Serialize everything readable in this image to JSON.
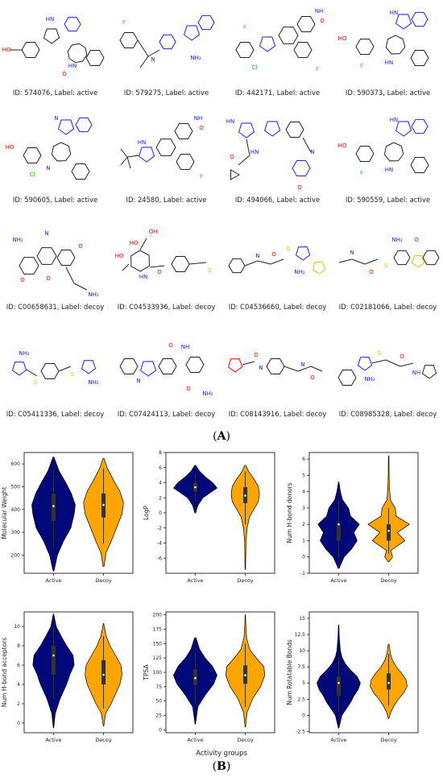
{
  "figure": {
    "panel_a_label": "A",
    "panel_b_label": "B",
    "x_group_label": "Activity groups"
  },
  "molecules": [
    {
      "id": "574076",
      "label": "active",
      "caption": "ID: 574076, Label: active"
    },
    {
      "id": "579275",
      "label": "active",
      "caption": "ID: 579275, Label: active"
    },
    {
      "id": "442171",
      "label": "active",
      "caption": "ID: 442171, Label: active"
    },
    {
      "id": "590373",
      "label": "active",
      "caption": "ID: 590373, Label: active"
    },
    {
      "id": "590605",
      "label": "active",
      "caption": "ID: 590605, Label: active"
    },
    {
      "id": "24580",
      "label": "active",
      "caption": "ID: 24580, Label: active"
    },
    {
      "id": "494066",
      "label": "active",
      "caption": "ID: 494066, Label: active"
    },
    {
      "id": "590559",
      "label": "active",
      "caption": "ID: 590559, Label: active"
    },
    {
      "id": "C00658631",
      "label": "decoy",
      "caption": "ID: C00658631, Label: decoy"
    },
    {
      "id": "C04533936",
      "label": "decoy",
      "caption": "ID: C04533936, Label: decoy"
    },
    {
      "id": "C04536660",
      "label": "decoy",
      "caption": "ID: C04536660, Label: decoy"
    },
    {
      "id": "C02181066",
      "label": "decoy",
      "caption": "ID: C02181066, Label: decoy"
    },
    {
      "id": "C05411336",
      "label": "decoy",
      "caption": "ID: C05411336, Label: decoy"
    },
    {
      "id": "C07424113",
      "label": "decoy",
      "caption": "ID: C07424113, Label: decoy"
    },
    {
      "id": "C08143916",
      "label": "decoy",
      "caption": "ID: C08143916, Label: decoy"
    },
    {
      "id": "C08985328",
      "label": "decoy",
      "caption": "ID: C08985328, Label: decoy"
    }
  ],
  "colors": {
    "active": "#00087a",
    "decoy": "#ffa500",
    "bond": "#222222",
    "nitrogen": "#2020ff",
    "oxygen": "#ff0000",
    "halogen_f": "#33cc33",
    "halogen_cl": "#22aa22",
    "sulfur": "#cccc00"
  },
  "chart_data": [
    {
      "type": "violin",
      "ylabel": "Molecular Weight",
      "categories": [
        "Active",
        "Decoy"
      ],
      "ylim": [
        120,
        650
      ],
      "yticks": [
        200,
        300,
        400,
        500,
        600
      ],
      "series": [
        {
          "values_profile": [
            [
              130,
              0.02
            ],
            [
              200,
              0.18
            ],
            [
              260,
              0.45
            ],
            [
              320,
              0.8
            ],
            [
              380,
              0.95
            ],
            [
              420,
              1.0
            ],
            [
              470,
              0.82
            ],
            [
              520,
              0.55
            ],
            [
              570,
              0.25
            ],
            [
              630,
              0.02
            ]
          ],
          "q1": 350,
          "median": 415,
          "q3": 470,
          "whisker": [
            230,
            570
          ]
        },
        {
          "values_profile": [
            [
              150,
              0.02
            ],
            [
              210,
              0.12
            ],
            [
              260,
              0.35
            ],
            [
              320,
              0.6
            ],
            [
              380,
              0.85
            ],
            [
              430,
              0.92
            ],
            [
              480,
              0.75
            ],
            [
              530,
              0.45
            ],
            [
              580,
              0.18
            ],
            [
              625,
              0.02
            ]
          ],
          "q1": 365,
          "median": 420,
          "q3": 470,
          "whisker": [
            250,
            580
          ]
        }
      ]
    },
    {
      "type": "violin",
      "ylabel": "LogP",
      "categories": [
        "Active",
        "Decoy"
      ],
      "ylim": [
        -8,
        8
      ],
      "yticks": [
        -6,
        -4,
        -2,
        0,
        2,
        4,
        6,
        8
      ],
      "series": [
        {
          "values_profile": [
            [
              0,
              0.02
            ],
            [
              1,
              0.12
            ],
            [
              2,
              0.35
            ],
            [
              2.8,
              0.75
            ],
            [
              3.3,
              1.0
            ],
            [
              4,
              0.8
            ],
            [
              4.8,
              0.45
            ],
            [
              5.5,
              0.2
            ],
            [
              6.3,
              0.02
            ]
          ],
          "q1": 2.8,
          "median": 3.4,
          "q3": 4.0,
          "whisker": [
            1.6,
            5.2
          ]
        },
        {
          "values_profile": [
            [
              -7.5,
              0.01
            ],
            [
              -4,
              0.03
            ],
            [
              -2,
              0.08
            ],
            [
              -0.5,
              0.2
            ],
            [
              0.5,
              0.4
            ],
            [
              1.5,
              0.6
            ],
            [
              2.5,
              0.65
            ],
            [
              3.5,
              0.6
            ],
            [
              4.5,
              0.4
            ],
            [
              5.5,
              0.15
            ],
            [
              6.3,
              0.02
            ]
          ],
          "q1": 1.3,
          "median": 2.3,
          "q3": 3.4,
          "whisker": [
            -1.5,
            5.5
          ]
        }
      ]
    },
    {
      "type": "violin",
      "ylabel": "Num H-bond donors",
      "categories": [
        "Active",
        "Decoy"
      ],
      "ylim": [
        -1,
        6.4
      ],
      "yticks": [
        -1,
        0,
        1,
        2,
        3,
        4,
        5,
        6
      ],
      "series": [
        {
          "values_profile": [
            [
              -0.7,
              0.02
            ],
            [
              0,
              0.25
            ],
            [
              0.5,
              0.6
            ],
            [
              1,
              0.85
            ],
            [
              1.5,
              0.7
            ],
            [
              2,
              0.95
            ],
            [
              2.5,
              0.55
            ],
            [
              3,
              0.45
            ],
            [
              3.5,
              0.18
            ],
            [
              4,
              0.08
            ],
            [
              4.6,
              0.01
            ]
          ],
          "q1": 1.0,
          "median": 2.0,
          "q3": 2.0,
          "whisker": [
            0,
            3.5
          ]
        },
        {
          "values_profile": [
            [
              -0.3,
              0.02
            ],
            [
              0,
              0.18
            ],
            [
              0.4,
              0.1
            ],
            [
              1,
              0.75
            ],
            [
              1.5,
              0.4
            ],
            [
              2,
              0.95
            ],
            [
              2.5,
              0.35
            ],
            [
              3,
              0.3
            ],
            [
              3.5,
              0.08
            ],
            [
              4,
              0.05
            ],
            [
              4.5,
              0.03
            ],
            [
              5,
              0.02
            ],
            [
              6.2,
              0.01
            ]
          ],
          "q1": 1.0,
          "median": 1.6,
          "q3": 2.0,
          "whisker": [
            0.2,
            3.0
          ]
        }
      ]
    },
    {
      "type": "violin",
      "ylabel": "Num H-bond acceptors",
      "categories": [
        "Active",
        "Decoy"
      ],
      "ylim": [
        -1,
        11.5
      ],
      "yticks": [
        0,
        2,
        4,
        6,
        8,
        10
      ],
      "series": [
        {
          "values_profile": [
            [
              -0.5,
              0.01
            ],
            [
              1,
              0.08
            ],
            [
              2.5,
              0.3
            ],
            [
              4,
              0.6
            ],
            [
              5,
              0.75
            ],
            [
              6,
              0.95
            ],
            [
              7,
              0.9
            ],
            [
              8,
              0.6
            ],
            [
              9,
              0.35
            ],
            [
              10,
              0.12
            ],
            [
              11.3,
              0.01
            ]
          ],
          "q1": 5.0,
          "median": 7.0,
          "q3": 8.0,
          "whisker": [
            2.5,
            10
          ]
        },
        {
          "values_profile": [
            [
              -0.3,
              0.01
            ],
            [
              1,
              0.1
            ],
            [
              2,
              0.35
            ],
            [
              3,
              0.55
            ],
            [
              4,
              0.75
            ],
            [
              5,
              0.85
            ],
            [
              6,
              0.8
            ],
            [
              7,
              0.55
            ],
            [
              8,
              0.3
            ],
            [
              9,
              0.12
            ],
            [
              10.3,
              0.01
            ]
          ],
          "q1": 4.0,
          "median": 5.0,
          "q3": 6.5,
          "whisker": [
            1.5,
            9
          ]
        }
      ]
    },
    {
      "type": "violin",
      "ylabel": "TPSA",
      "categories": [
        "Active",
        "Decoy"
      ],
      "ylim": [
        -5,
        205
      ],
      "yticks": [
        0,
        25,
        50,
        75,
        100,
        125,
        150,
        175,
        200
      ],
      "series": [
        {
          "values_profile": [
            [
              10,
              0.01
            ],
            [
              40,
              0.12
            ],
            [
              60,
              0.45
            ],
            [
              80,
              0.85
            ],
            [
              95,
              1.0
            ],
            [
              110,
              0.8
            ],
            [
              125,
              0.45
            ],
            [
              140,
              0.2
            ],
            [
              160,
              0.03
            ]
          ],
          "q1": 78,
          "median": 90,
          "q3": 105,
          "whisker": [
            45,
            135
          ]
        },
        {
          "values_profile": [
            [
              5,
              0.01
            ],
            [
              30,
              0.08
            ],
            [
              55,
              0.35
            ],
            [
              75,
              0.7
            ],
            [
              95,
              0.9
            ],
            [
              110,
              0.85
            ],
            [
              125,
              0.5
            ],
            [
              140,
              0.2
            ],
            [
              160,
              0.06
            ],
            [
              185,
              0.02
            ],
            [
              200,
              0.01
            ]
          ],
          "q1": 80,
          "median": 95,
          "q3": 112,
          "whisker": [
            40,
            150
          ]
        }
      ]
    },
    {
      "type": "violin",
      "ylabel": "Num Rotatable Bonds",
      "categories": [
        "Active",
        "Decoy"
      ],
      "ylim": [
        -2.7,
        16
      ],
      "yticks": [
        -2.5,
        0.0,
        2.5,
        5.0,
        7.5,
        10.0,
        12.5,
        15.0
      ],
      "series": [
        {
          "values_profile": [
            [
              -2,
              0.01
            ],
            [
              0,
              0.15
            ],
            [
              1,
              0.35
            ],
            [
              2,
              0.55
            ],
            [
              3,
              0.7
            ],
            [
              4,
              0.9
            ],
            [
              5,
              1.0
            ],
            [
              6,
              0.85
            ],
            [
              7,
              0.55
            ],
            [
              8,
              0.3
            ],
            [
              9,
              0.15
            ],
            [
              10,
              0.08
            ],
            [
              12,
              0.03
            ],
            [
              14,
              0.01
            ]
          ],
          "q1": 3.0,
          "median": 5.0,
          "q3": 6.0,
          "whisker": [
            0.5,
            9.0
          ]
        },
        {
          "values_profile": [
            [
              -0.5,
              0.01
            ],
            [
              0.5,
              0.1
            ],
            [
              1.5,
              0.25
            ],
            [
              2.5,
              0.45
            ],
            [
              3.5,
              0.7
            ],
            [
              4.5,
              0.85
            ],
            [
              5.5,
              0.8
            ],
            [
              6.5,
              0.6
            ],
            [
              7.5,
              0.35
            ],
            [
              8.5,
              0.18
            ],
            [
              9.5,
              0.08
            ],
            [
              11,
              0.02
            ]
          ],
          "q1": 4.0,
          "median": 5.0,
          "q3": 6.5,
          "whisker": [
            1.5,
            9.5
          ]
        }
      ]
    }
  ]
}
